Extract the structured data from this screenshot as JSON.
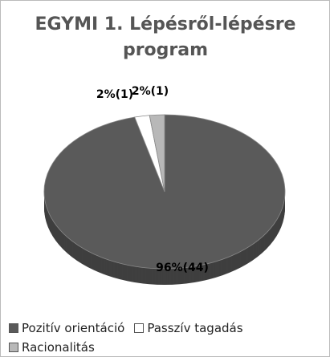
{
  "chart_data": {
    "type": "pie",
    "title": "EGYMI 1. Lépésről-lépésre program",
    "categories": [
      "Pozitív orientáció",
      "Passzív tagadás",
      "Racionalitás"
    ],
    "values": [
      96,
      2,
      2
    ],
    "value_labels": [
      "96%(44)",
      "2%(1)",
      "2%(1)"
    ],
    "colors": [
      "#5a5a5a",
      "#ffffff",
      "#b8b8b8"
    ]
  }
}
